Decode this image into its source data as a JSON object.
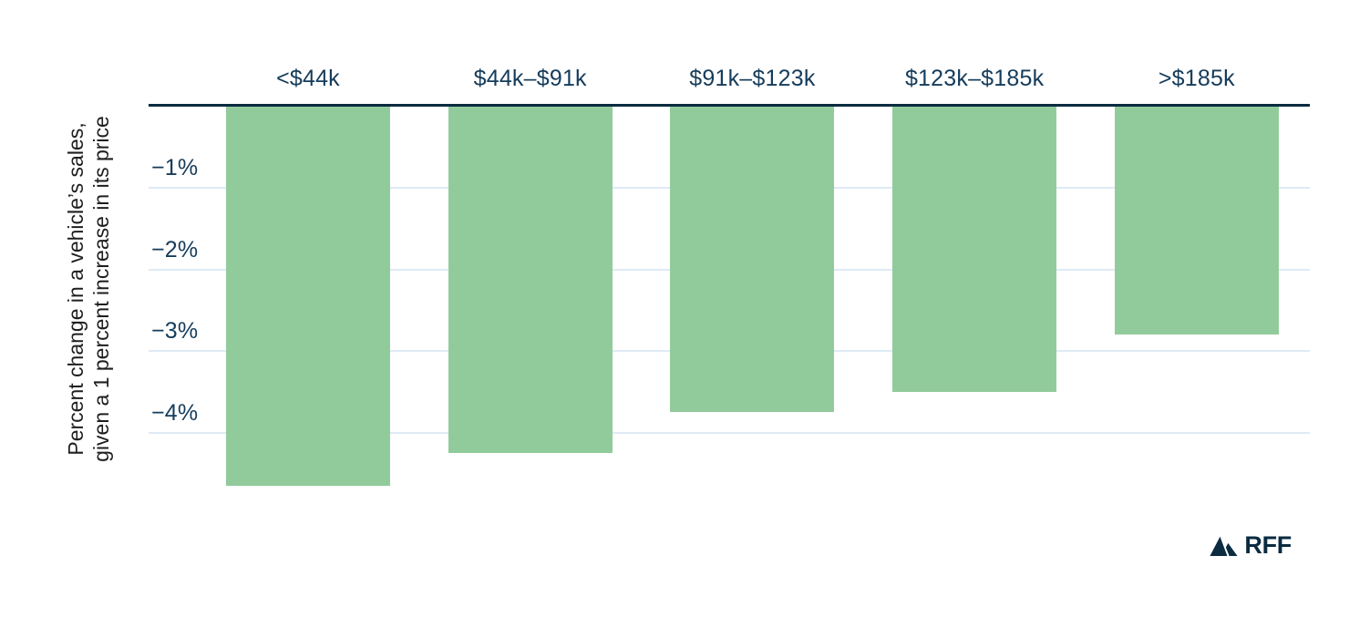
{
  "chart_data": {
    "type": "bar",
    "orientation": "vertical-negative",
    "title": "",
    "categories": [
      "<$44k",
      "$44k–$91k",
      "$91k–$123k",
      "$123k–$185k",
      ">$185k"
    ],
    "values": [
      -4.65,
      -4.25,
      -3.75,
      -3.5,
      -2.8
    ],
    "unit": "%",
    "ylabel_line1": "Percent change in a vehicle’s sales,",
    "ylabel_line2": "given a 1 percent increase in its price",
    "yticks": [
      "−1%",
      "−2%",
      "−3%",
      "−4%"
    ],
    "ytick_values": [
      -1,
      -2,
      -3,
      -4
    ],
    "ylim": [
      -5,
      0
    ],
    "xlabel": "",
    "grid": "horizontal gridlines at each 1% interval below the zero axis",
    "legend": "none",
    "bars_hang_from_top_axis": true,
    "colors": {
      "bar": "#92CB9B",
      "axis_line": "#0A2B40",
      "gridline": "#DEEBF7",
      "tick_label": "#153C5B",
      "y_title": "#1E1E1E",
      "background": "#FFFFFF"
    }
  },
  "branding": {
    "logo_text": "RFF",
    "logo_icon": "mountain-peaks-icon",
    "logo_color": "#0A2B40"
  }
}
